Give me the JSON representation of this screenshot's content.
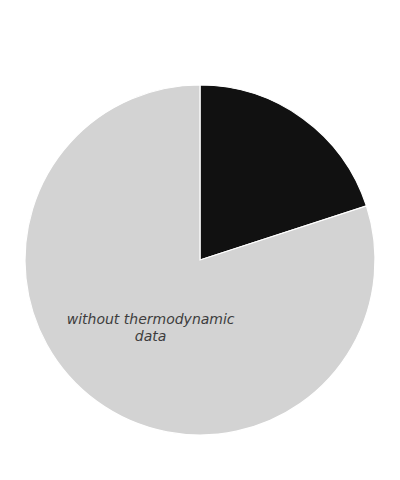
{
  "chart_data": {
    "type": "pie",
    "categories": [
      null,
      "without thermodynamic\ndata"
    ],
    "values": [
      20,
      80
    ],
    "colors": [
      "#111111",
      "#d3d3d3"
    ]
  }
}
